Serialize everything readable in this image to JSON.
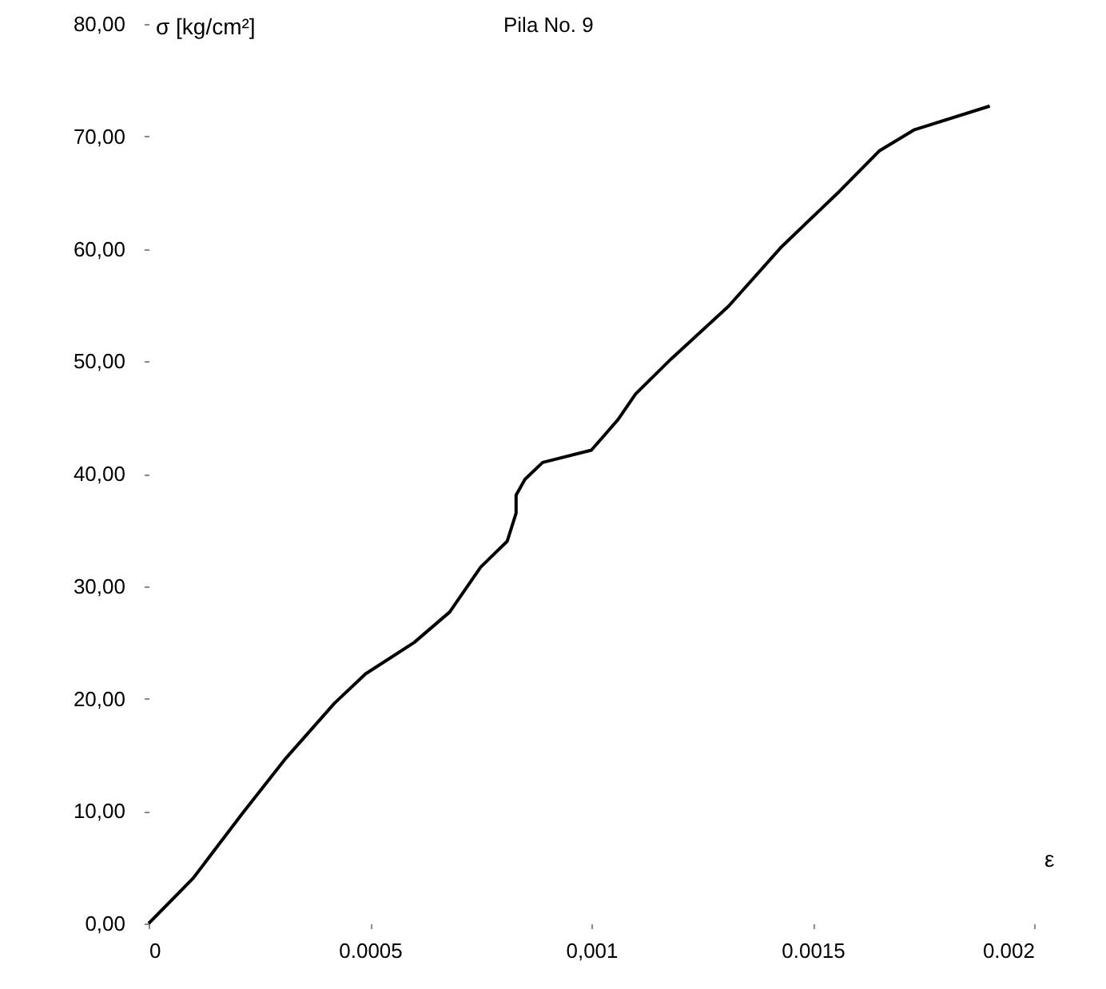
{
  "chart_data": {
    "type": "line",
    "title": "Pila No. 9",
    "xlabel": "ε",
    "ylabel": "σ [kg/cm²]",
    "x": [
      0,
      0.0001,
      0.00021,
      0.00031,
      0.00042,
      0.00049,
      0.0006,
      0.00068,
      0.00075,
      0.00081,
      0.00083,
      0.00083,
      0.00085,
      0.00089,
      0.001,
      0.00106,
      0.0011,
      0.00118,
      0.00131,
      0.00143,
      0.00156,
      0.00165,
      0.00173,
      0.0019
    ],
    "values": [
      0,
      4.0,
      9.7,
      14.7,
      19.6,
      22.2,
      25.0,
      27.7,
      31.7,
      34.0,
      36.5,
      38.1,
      39.5,
      41.0,
      42.1,
      44.8,
      47.1,
      50.2,
      54.9,
      60.2,
      65.1,
      68.7,
      70.6,
      72.7
    ],
    "color": "#000000",
    "xlim": [
      0,
      0.002
    ],
    "ylim": [
      0,
      80
    ],
    "xticks": [
      0,
      0.0005,
      {
        "value": 0.001,
        "label": "0,001"
      },
      0.0015,
      0.002
    ],
    "yticks": [
      {
        "value": 0,
        "label": "0,00"
      },
      {
        "value": 10,
        "label": "10,00"
      },
      {
        "value": 20,
        "label": "20,00"
      },
      {
        "value": 30,
        "label": "30,00"
      },
      {
        "value": 40,
        "label": "40,00"
      },
      {
        "value": 50,
        "label": "50,00"
      },
      {
        "value": 60,
        "label": "60,00"
      },
      {
        "value": 70,
        "label": "70,00"
      },
      {
        "value": 80,
        "label": "80,00"
      }
    ]
  }
}
